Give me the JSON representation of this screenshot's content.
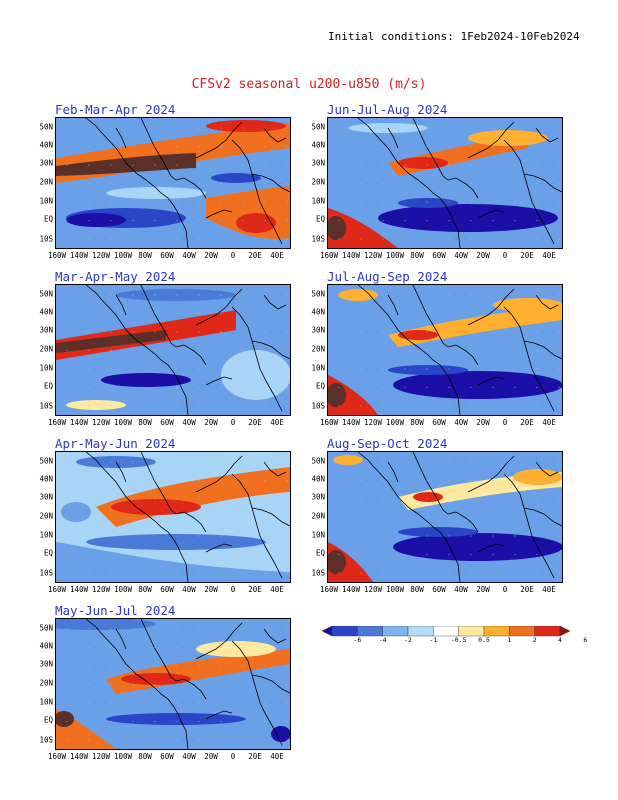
{
  "header": {
    "initial_conditions": "Initial conditions: 1Feb2024-10Feb2024",
    "title": "CFSv2 seasonal u200-u850 (m/s)"
  },
  "axes": {
    "lat_labels": [
      "50N",
      "40N",
      "30N",
      "20N",
      "10N",
      "EQ",
      "10S"
    ],
    "lon_labels": [
      "160W",
      "140W",
      "120W",
      "100W",
      "80W",
      "60W",
      "40W",
      "20W",
      "0",
      "20E",
      "40E"
    ]
  },
  "panels": [
    {
      "title": "Feb-Mar-Apr 2024"
    },
    {
      "title": "Jun-Jul-Aug 2024"
    },
    {
      "title": "Mar-Apr-May 2024"
    },
    {
      "title": "Jul-Aug-Sep 2024"
    },
    {
      "title": "Apr-May-Jun 2024"
    },
    {
      "title": "Aug-Sep-Oct 2024"
    },
    {
      "title": "May-Jun-Jul 2024"
    }
  ],
  "colorbar": {
    "labels": [
      "-6",
      "-4",
      "-2",
      "-1",
      "-0.5",
      "0.5",
      "1",
      "2",
      "4",
      "6"
    ],
    "colors": [
      "#1c0fa8",
      "#2a45c8",
      "#4a7ad8",
      "#7eb4ee",
      "#b4dcf8",
      "#ffffff",
      "#ffe8a0",
      "#ffb030",
      "#f07020",
      "#e02818",
      "#901810"
    ]
  }
}
